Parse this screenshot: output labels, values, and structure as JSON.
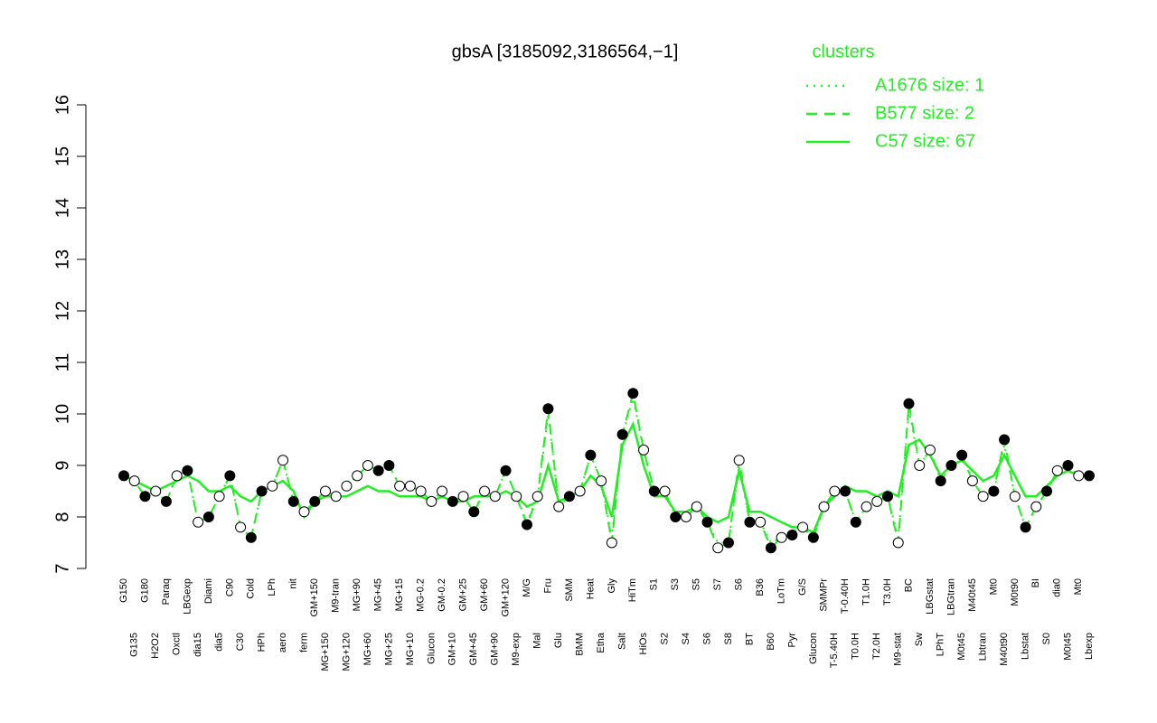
{
  "chart_data": {
    "type": "line",
    "title": "gbsA [3185092,3186564,−1]",
    "legend_title": "clusters",
    "legend_position": "top-right",
    "ylim": [
      7,
      16
    ],
    "yticks": [
      7,
      8,
      9,
      10,
      11,
      12,
      13,
      14,
      15,
      16
    ],
    "categories": [
      "G150",
      "G135",
      "G180",
      "H2O2",
      "Paraq",
      "Oxctl",
      "LBGexp",
      "dia15",
      "Diami",
      "dia5",
      "C90",
      "C30",
      "Cold",
      "HPh",
      "LPh",
      "aero",
      "nit",
      "ferm",
      "GM+150",
      "MG+150",
      "M9-tran",
      "MG+120",
      "MG+90",
      "MG+60",
      "MG+45",
      "MG+25",
      "MG+15",
      "MG+10",
      "MG-0.2",
      "Glucon",
      "GM-0.2",
      "GM+10",
      "GM+25",
      "GM+45",
      "GM+60",
      "GM+90",
      "GM+120",
      "M9-exp",
      "M/G",
      "Mal",
      "Fru",
      "Glu",
      "SMM",
      "BMM",
      "Heat",
      "Etha",
      "Gly",
      "Salt",
      "HiTm",
      "HiOs",
      "S1",
      "S2",
      "S3",
      "S4",
      "S5",
      "S6",
      "S7",
      "S8",
      "S6",
      "BT",
      "B36",
      "B60",
      "LoTm",
      "Pyr",
      "G/S",
      "Glucon",
      "SMMPr",
      "T-5.40H",
      "T-0.40H",
      "T0.0H",
      "T1.0H",
      "T2.0H",
      "T3.0H",
      "M9-stat",
      "BC",
      "Sw",
      "LBGstat",
      "LPhT",
      "LBGtran",
      "M0t45",
      "M40t45",
      "Lbtran",
      "Mt0",
      "M40t90",
      "M0t90",
      "Lbstat",
      "BI",
      "S0",
      "dia0",
      "M0t45",
      "Mt0",
      "Lbexp"
    ],
    "series": [
      {
        "name": "A1676 size: 1",
        "color": "#22ee22",
        "dash": "dotted",
        "values": [
          8.8,
          8.7,
          8.4,
          8.5,
          8.3,
          8.8,
          8.9,
          7.9,
          8.0,
          8.4,
          8.8,
          7.8,
          7.6,
          8.5,
          8.6,
          9.1,
          8.3,
          8.1,
          8.3,
          8.5,
          8.4,
          8.6,
          8.8,
          9.0,
          8.9,
          9.0,
          8.6,
          8.6,
          8.5,
          8.3,
          8.5,
          8.3,
          8.4,
          8.1,
          8.5,
          8.4,
          8.9,
          8.4,
          7.9,
          8.4,
          10.0,
          8.2,
          8.4,
          8.5,
          9.2,
          8.7,
          7.6,
          9.6,
          10.3,
          9.3,
          8.5,
          8.5,
          8.0,
          8.0,
          8.2,
          7.9,
          7.5,
          7.5,
          9.0,
          7.9,
          7.9,
          7.5,
          7.6,
          7.7,
          7.8,
          7.6,
          8.2,
          8.5,
          8.5,
          7.9,
          8.2,
          8.3,
          8.4,
          7.6,
          10.1,
          9.0,
          9.3,
          8.7,
          9.0,
          9.2,
          8.7,
          8.4,
          8.5,
          9.4,
          8.4,
          7.8,
          8.2,
          8.5,
          8.9,
          9.0,
          8.8,
          8.8
        ]
      },
      {
        "name": "B577 size: 2",
        "color": "#22ee22",
        "dash": "dashed",
        "values": [
          8.8,
          8.7,
          8.4,
          8.5,
          8.3,
          8.8,
          8.9,
          7.9,
          8.0,
          8.4,
          8.8,
          7.8,
          7.6,
          8.5,
          8.6,
          9.1,
          8.3,
          8.1,
          8.3,
          8.5,
          8.4,
          8.6,
          8.8,
          9.0,
          8.9,
          9.0,
          8.6,
          8.6,
          8.5,
          8.3,
          8.5,
          8.3,
          8.4,
          8.1,
          8.5,
          8.4,
          8.9,
          8.4,
          7.85,
          8.4,
          10.1,
          8.2,
          8.4,
          8.5,
          9.2,
          8.7,
          7.5,
          9.6,
          10.4,
          9.3,
          8.5,
          8.5,
          8.0,
          8.0,
          8.2,
          7.9,
          7.4,
          7.5,
          9.1,
          7.9,
          7.9,
          7.4,
          7.6,
          7.65,
          7.8,
          7.6,
          8.2,
          8.5,
          8.5,
          7.9,
          8.2,
          8.3,
          8.4,
          7.5,
          10.2,
          9.0,
          9.3,
          8.7,
          9.0,
          9.2,
          8.7,
          8.4,
          8.5,
          9.5,
          8.4,
          7.8,
          8.2,
          8.5,
          8.9,
          9.0,
          8.8,
          8.8
        ]
      },
      {
        "name": "C57 size: 67",
        "color": "#22ee22",
        "dash": "solid",
        "values": [
          8.8,
          8.7,
          8.6,
          8.5,
          8.6,
          8.7,
          8.8,
          8.7,
          8.5,
          8.5,
          8.6,
          8.4,
          8.3,
          8.5,
          8.6,
          8.7,
          8.5,
          8.0,
          8.3,
          8.4,
          8.4,
          8.4,
          8.5,
          8.6,
          8.5,
          8.5,
          8.4,
          8.4,
          8.4,
          8.3,
          8.4,
          8.3,
          8.3,
          8.4,
          8.4,
          8.4,
          8.5,
          8.4,
          8.2,
          8.3,
          9.0,
          8.3,
          8.4,
          8.5,
          8.8,
          8.6,
          8.0,
          9.4,
          9.8,
          9.0,
          8.4,
          8.4,
          8.1,
          8.1,
          8.2,
          8.0,
          7.9,
          8.0,
          8.9,
          8.1,
          8.1,
          8.0,
          7.9,
          7.8,
          7.8,
          7.7,
          8.2,
          8.4,
          8.6,
          8.5,
          8.5,
          8.4,
          8.5,
          8.4,
          9.4,
          9.5,
          9.2,
          8.8,
          9.0,
          9.1,
          8.9,
          8.7,
          8.8,
          9.2,
          8.8,
          8.4,
          8.4,
          8.6,
          8.8,
          8.9,
          8.8,
          8.8
        ]
      }
    ],
    "points": {
      "values": [
        8.8,
        8.7,
        8.4,
        8.5,
        8.3,
        8.8,
        8.9,
        7.9,
        8.0,
        8.4,
        8.8,
        7.8,
        7.6,
        8.5,
        8.6,
        9.1,
        8.3,
        8.1,
        8.3,
        8.5,
        8.4,
        8.6,
        8.8,
        9.0,
        8.9,
        9.0,
        8.6,
        8.6,
        8.5,
        8.3,
        8.5,
        8.3,
        8.4,
        8.1,
        8.5,
        8.4,
        8.9,
        8.4,
        7.85,
        8.4,
        10.1,
        8.2,
        8.4,
        8.5,
        9.2,
        8.7,
        7.5,
        9.6,
        10.4,
        9.3,
        8.5,
        8.5,
        8.0,
        8.0,
        8.2,
        7.9,
        7.4,
        7.5,
        9.1,
        7.9,
        7.9,
        7.4,
        7.6,
        7.65,
        7.8,
        7.6,
        8.2,
        8.5,
        8.5,
        7.9,
        8.2,
        8.3,
        8.4,
        7.5,
        10.2,
        9.0,
        9.3,
        8.7,
        9.0,
        9.2,
        8.7,
        8.4,
        8.5,
        9.5,
        8.4,
        7.8,
        8.2,
        8.5,
        8.9,
        9.0,
        8.8,
        8.8
      ],
      "fill": [
        "black",
        "white",
        "black",
        "white",
        "black",
        "white",
        "black",
        "white",
        "black",
        "white",
        "black",
        "white",
        "black",
        "black",
        "white",
        "white",
        "black",
        "white",
        "black",
        "white",
        "white",
        "white",
        "white",
        "white",
        "black",
        "black",
        "white",
        "white",
        "white",
        "white",
        "white",
        "black",
        "white",
        "black",
        "white",
        "white",
        "black",
        "white",
        "black",
        "white",
        "black",
        "white",
        "black",
        "white",
        "black",
        "white",
        "white",
        "black",
        "black",
        "white",
        "black",
        "white",
        "black",
        "white",
        "white",
        "black",
        "white",
        "black",
        "white",
        "black",
        "white",
        "black",
        "white",
        "black",
        "white",
        "black",
        "white",
        "white",
        "black",
        "black",
        "white",
        "white",
        "black",
        "white",
        "black",
        "white",
        "white",
        "black",
        "black",
        "black",
        "white",
        "white",
        "black",
        "black",
        "white",
        "black",
        "white",
        "black",
        "white",
        "black",
        "white",
        "black"
      ]
    }
  }
}
